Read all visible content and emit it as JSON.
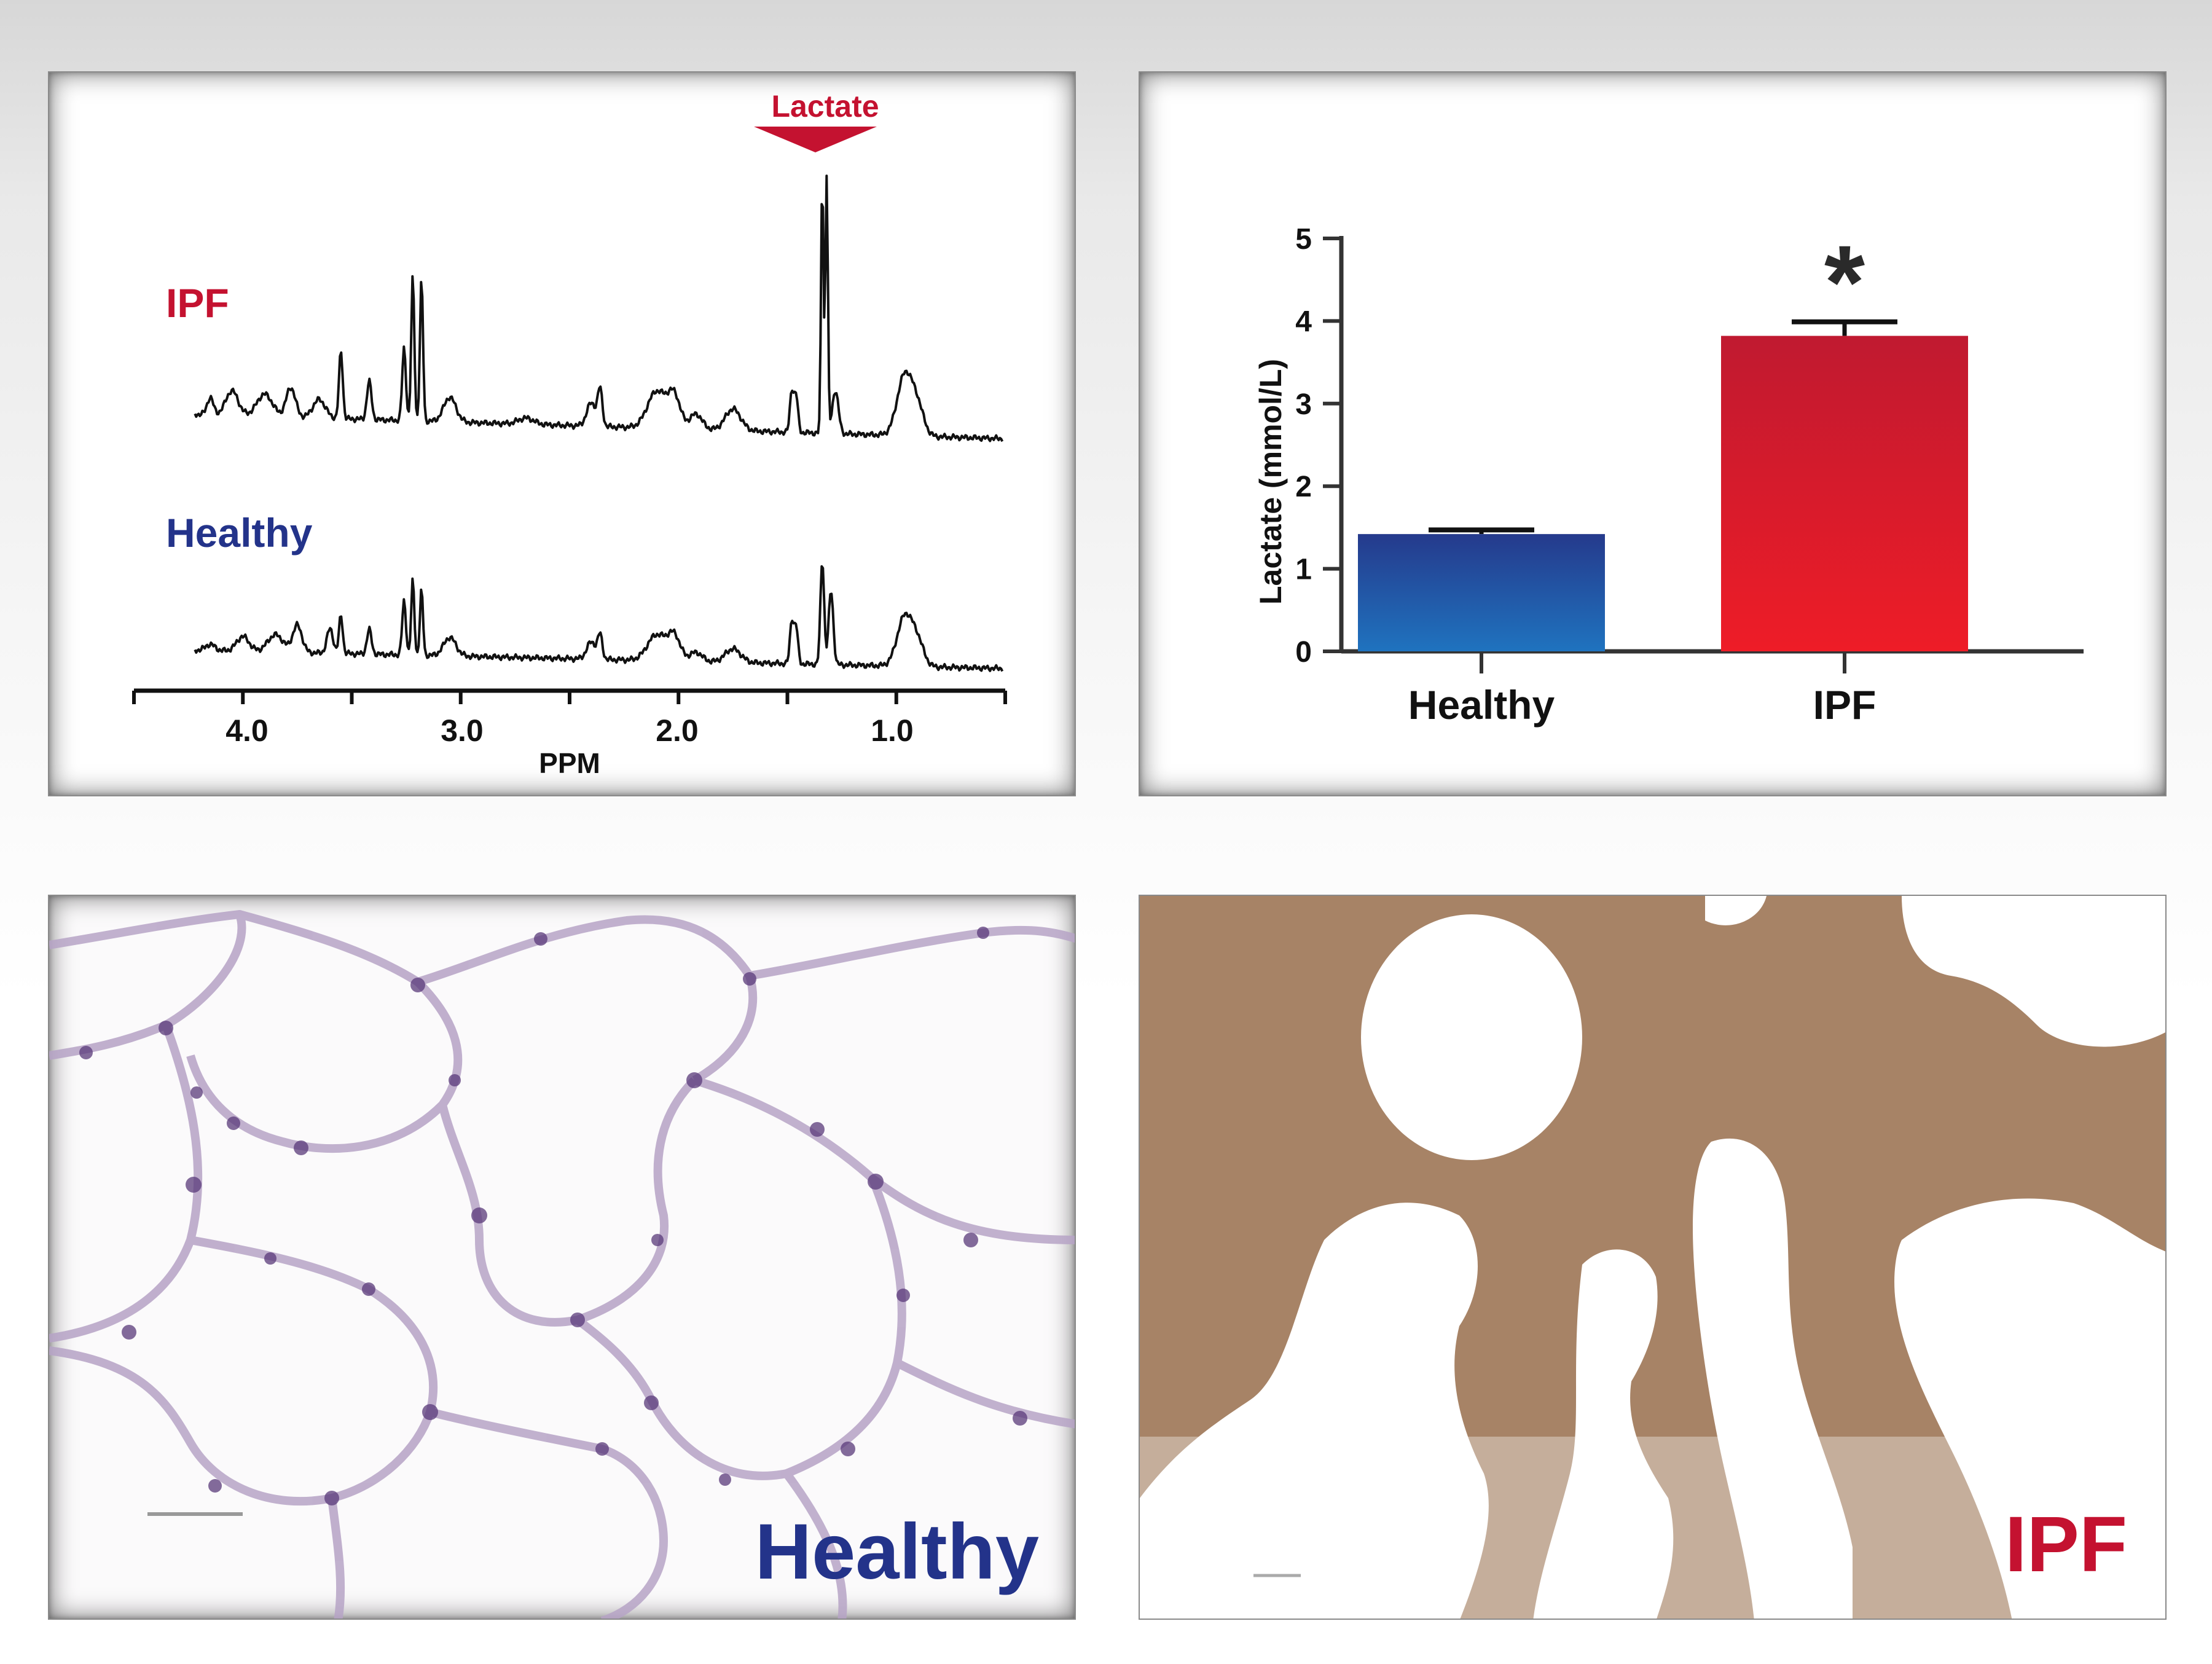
{
  "colors": {
    "ipf_red": "#c41230",
    "healthy_blue": "#23338a",
    "bar_healthy_top": "#253a8c",
    "bar_healthy_bottom": "#1f73bf",
    "bar_ipf_top": "#c01a30",
    "bar_ipf_bottom": "#ee1c27"
  },
  "nmr": {
    "peak_label": "Lactate",
    "ipf_label": "IPF",
    "healthy_label": "Healthy",
    "xlabel": "PPM",
    "ticks": [
      "4.0",
      "3.0",
      "2.0",
      "1.0"
    ]
  },
  "chart_data": {
    "type": "bar",
    "categories": [
      "Healthy",
      "IPF"
    ],
    "values": [
      1.42,
      3.82
    ],
    "errors": [
      0.05,
      0.17
    ],
    "ylabel": "Lactate (mmol/L)",
    "ylim": [
      0,
      5
    ],
    "yticks": [
      "0",
      "1",
      "2",
      "3",
      "4",
      "5"
    ],
    "significance": [
      "",
      "*"
    ]
  },
  "images": {
    "healthy_label": "Healthy",
    "ipf_label": "IPF"
  }
}
